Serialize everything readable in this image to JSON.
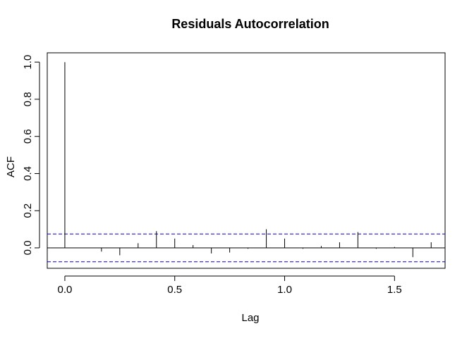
{
  "chart_data": {
    "type": "bar",
    "title": "Residuals Autocorrelation",
    "xlabel": "Lag",
    "ylabel": "ACF",
    "x": [
      0,
      0.0833,
      0.1667,
      0.25,
      0.3333,
      0.4167,
      0.5,
      0.5833,
      0.6667,
      0.75,
      0.8333,
      0.9167,
      1.0,
      1.0833,
      1.1667,
      1.25,
      1.3333,
      1.4167,
      1.5,
      1.5833,
      1.6667
    ],
    "values": [
      1.0,
      0.0,
      -0.02,
      -0.04,
      0.025,
      0.09,
      0.05,
      0.015,
      -0.03,
      -0.025,
      -0.005,
      0.1,
      0.05,
      -0.005,
      0.01,
      0.03,
      0.085,
      -0.005,
      0.005,
      -0.05,
      0.03
    ],
    "confidence_limit": 0.075,
    "xlim": [
      -0.08,
      1.73
    ],
    "ylim": [
      -0.11,
      1.05
    ],
    "xticks": [
      "0.0",
      "0.5",
      "1.0",
      "1.5"
    ],
    "yticks": [
      "0.0",
      "0.2",
      "0.4",
      "0.6",
      "0.8",
      "1.0"
    ],
    "colors": {
      "bars": "#000000",
      "confidence": "#0000cc",
      "zero_line": "#000000"
    }
  }
}
